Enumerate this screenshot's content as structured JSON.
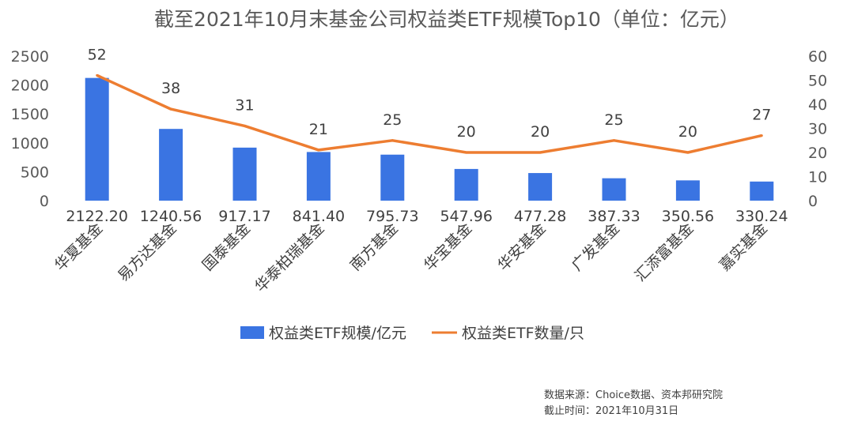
{
  "chart_data": {
    "type": "bar+line",
    "title": "截至2021年10月末基金公司权益类ETF规模Top10（单位：亿元）",
    "categories": [
      "华夏基金",
      "易方达基金",
      "国泰基金",
      "华泰柏瑞基金",
      "南方基金",
      "华宝基金",
      "华安基金",
      "广发基金",
      "汇添富基金",
      "嘉实基金"
    ],
    "series": [
      {
        "name": "权益类ETF规模/亿元",
        "type": "bar",
        "axis": "left",
        "color": "#3A74E2",
        "values": [
          2122.2,
          1240.56,
          917.17,
          841.4,
          795.73,
          547.96,
          477.28,
          387.33,
          350.56,
          330.24
        ],
        "labels": [
          "2122.20",
          "1240.56",
          "917.17",
          "841.40",
          "795.73",
          "547.96",
          "477.28",
          "387.33",
          "350.56",
          "330.24"
        ]
      },
      {
        "name": "权益类ETF数量/只",
        "type": "line",
        "axis": "right",
        "color": "#ED7D31",
        "values": [
          52,
          38,
          31,
          21,
          25,
          20,
          20,
          25,
          20,
          27
        ],
        "labels": [
          "52",
          "38",
          "31",
          "21",
          "25",
          "20",
          "20",
          "25",
          "20",
          "27"
        ]
      }
    ],
    "y_left": {
      "ylim": [
        0,
        2500
      ],
      "ticks": [
        "0",
        "500",
        "1000",
        "1500",
        "2000",
        "2500"
      ]
    },
    "y_right": {
      "ylim": [
        0,
        60
      ],
      "ticks": [
        "0",
        "10",
        "20",
        "30",
        "40",
        "50",
        "60"
      ]
    },
    "grid": false,
    "legend_position": "bottom"
  },
  "source": {
    "line1": "数据来源：Choice数据、资本邦研究院",
    "line2": "截止时间：2021年10月31日"
  }
}
